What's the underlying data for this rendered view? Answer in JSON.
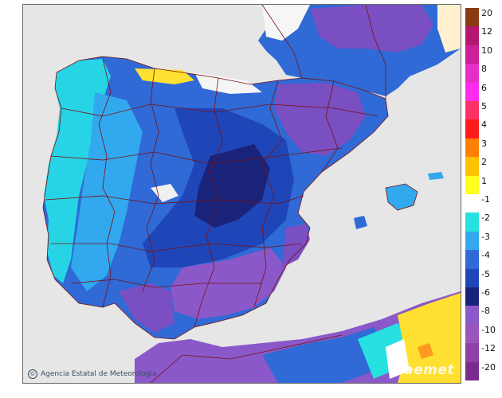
{
  "map": {
    "credit": "Agencia Estatal de Meteorología",
    "credit_symbol": "©",
    "watermark": "aemet"
  },
  "legend": {
    "labels": [
      "20",
      "12",
      "10",
      "8",
      "6",
      "5",
      "4",
      "3",
      "2",
      "1",
      "-1",
      "-2",
      "-3",
      "-4",
      "-5",
      "-6",
      "-8",
      "-10",
      "-12",
      "-20"
    ],
    "colors": [
      "#8a3a10",
      "#b4186e",
      "#cc1f99",
      "#e62dc8",
      "#ff2bf0",
      "#ff3066",
      "#ff1a1a",
      "#ff7f00",
      "#ffc000",
      "#ffff20",
      "#ffffff",
      "#27e0e0",
      "#32a8ee",
      "#2f6ad6",
      "#1f46b8",
      "#1a237a",
      "#8a58c8",
      "#9b55bc",
      "#8f3fa6",
      "#7a2b8e"
    ]
  }
}
